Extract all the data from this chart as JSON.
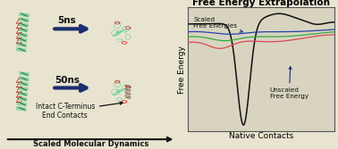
{
  "title": "Free Energy Extrapolation",
  "xlabel": "Native Contacts",
  "ylabel": "Free Energy",
  "fig_bg": "#e8e4d0",
  "left_bg": "#dedad0",
  "right_bg": "#d8d4c8",
  "title_fontsize": 7.5,
  "label_fontsize": 6.5,
  "annotation_scaled": "Scaled\nFree Energies",
  "annotation_unscaled": "Unscaled\nFree Energy",
  "scaled_md_label": "Scaled Molecular Dynamics",
  "arrow_5ns": "5ns",
  "arrow_50ns": "50ns",
  "intact_label": "Intact C-Terminus\nEnd Contacts",
  "line_blue_color": "#2244aa",
  "line_green_color": "#33aa44",
  "line_pink_color": "#dd4455",
  "line_black_color": "#111111",
  "green_ribbon": "#55cc88",
  "dark_green": "#1a4a22",
  "red_accent": "#cc1111"
}
